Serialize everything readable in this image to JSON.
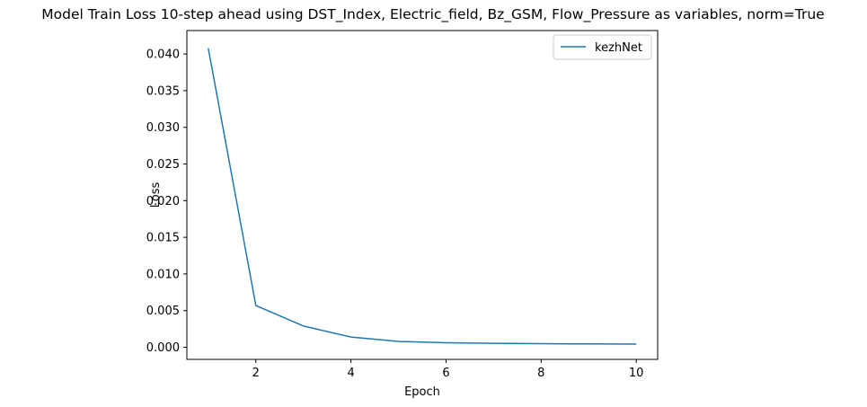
{
  "chart_data": {
    "type": "line",
    "title": "Model Train Loss 10-step ahead using DST_Index, Electric_field, Bz_GSM, Flow_Pressure as variables, norm=True",
    "xlabel": "Epoch",
    "ylabel": "Loss",
    "xlim": [
      0.55,
      10.45
    ],
    "ylim": [
      -0.00165,
      0.0432
    ],
    "xticks": [
      2,
      4,
      6,
      8,
      10
    ],
    "xtick_labels": [
      "2",
      "4",
      "6",
      "8",
      "10"
    ],
    "yticks": [
      0.0,
      0.005,
      0.01,
      0.015,
      0.02,
      0.025,
      0.03,
      0.035,
      0.04
    ],
    "ytick_labels": [
      "0.000",
      "0.005",
      "0.010",
      "0.015",
      "0.020",
      "0.025",
      "0.030",
      "0.035",
      "0.040"
    ],
    "grid": false,
    "legend_position": "top-right",
    "x": [
      1,
      2,
      3,
      4,
      5,
      6,
      7,
      8,
      9,
      10
    ],
    "series": [
      {
        "name": "kezhNet",
        "color": "#1f77b4",
        "values": [
          0.0408,
          0.0057,
          0.0029,
          0.0014,
          0.0008,
          0.00062,
          0.00054,
          0.00049,
          0.00046,
          0.00043
        ]
      }
    ]
  }
}
